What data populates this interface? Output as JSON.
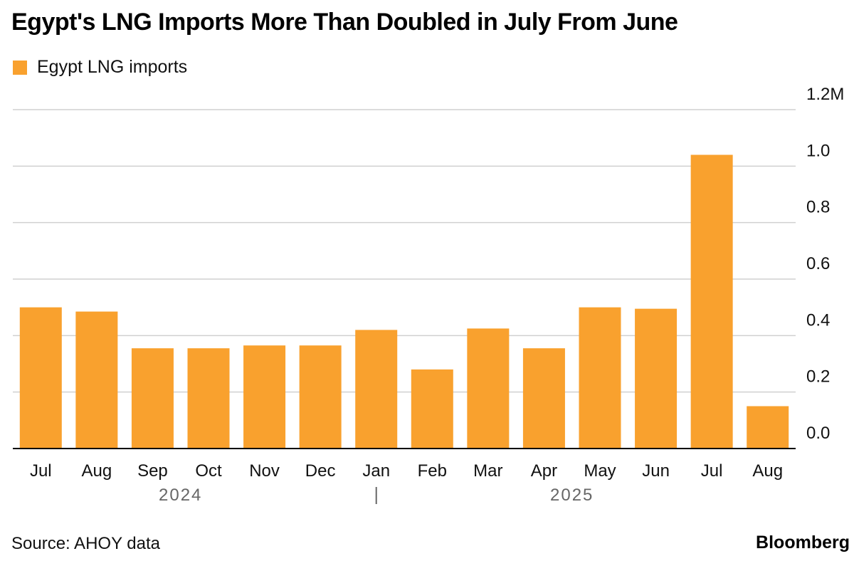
{
  "title": "Egypt's LNG Imports More Than Doubled in July From June",
  "source": "Source: AHOY data",
  "brand": "Bloomberg",
  "colors": {
    "bar": "#F9A12E",
    "grid": "#d0d0d0",
    "axis": "#000000",
    "year_label": "#666666"
  },
  "chart_data": {
    "type": "bar",
    "categories": [
      "Jul",
      "Aug",
      "Sep",
      "Oct",
      "Nov",
      "Dec",
      "Jan",
      "Feb",
      "Mar",
      "Apr",
      "May",
      "Jun",
      "Jul",
      "Aug"
    ],
    "series": [
      {
        "name": "Egypt LNG imports",
        "values": [
          0.5,
          0.485,
          0.355,
          0.355,
          0.365,
          0.365,
          0.42,
          0.28,
          0.425,
          0.355,
          0.5,
          0.495,
          1.04,
          0.15
        ]
      }
    ],
    "y_ticks": [
      "0.0",
      "0.2",
      "0.4",
      "0.6",
      "0.8",
      "1.0",
      "1.2M"
    ],
    "ylim": [
      0,
      1.2
    ],
    "year_labels": [
      {
        "label": "2024",
        "categories": [
          "Jul",
          "Dec"
        ]
      },
      {
        "label": "2025",
        "categories": [
          "Jan",
          "Aug"
        ]
      }
    ],
    "legend_position": "top-left",
    "grid": true
  }
}
